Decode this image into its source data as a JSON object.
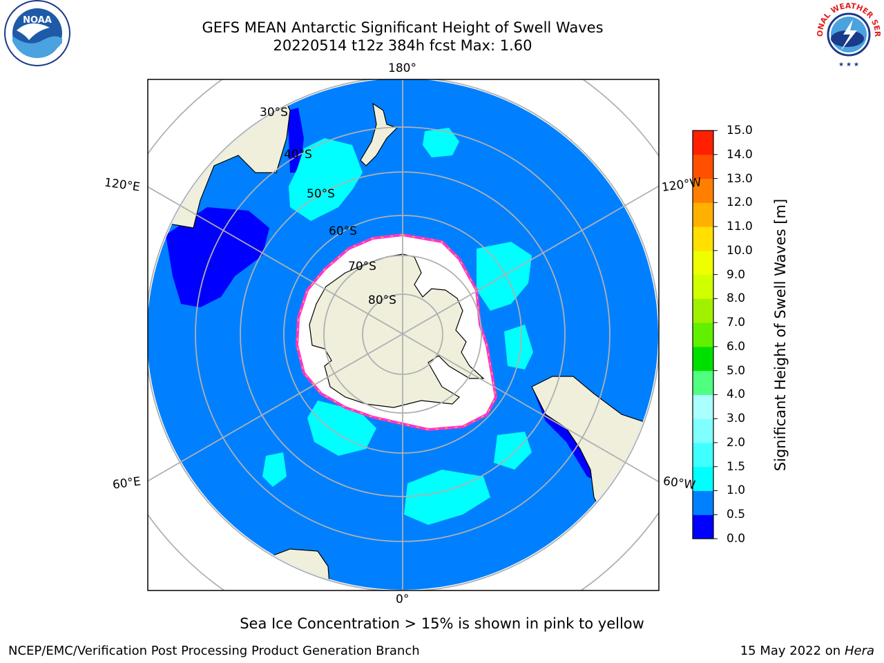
{
  "title": {
    "line1": "GEFS MEAN Antarctic Significant Height of Swell Waves",
    "line2": "20220514 t12z 384h fcst   Max: 1.60"
  },
  "logos": {
    "left": {
      "text": "NOAA",
      "icon": "noaa-logo-icon"
    },
    "right": {
      "text": "NATIONAL WEATHER SERVICE",
      "icon": "nws-logo-icon"
    }
  },
  "map": {
    "projection": "south-polar-stereographic",
    "longitude_labels": {
      "top": "180°",
      "bottom": "0°",
      "upper_left": "120°E",
      "upper_right": "120°W",
      "lower_left": "60°E",
      "lower_right": "60°W"
    },
    "latitude_labels": [
      "30°S",
      "40°S",
      "50°S",
      "60°S",
      "70°S",
      "80°S"
    ],
    "colors": {
      "ocean": "#0080ff",
      "land": "#efefdc",
      "ice": "#ffffff",
      "ice_edge": "#ff33cc",
      "graticule": "#b0b0b0"
    }
  },
  "colorbar": {
    "label": "Significant Height of Swell Waves [m]",
    "ticks": [
      "0.0",
      "0.5",
      "1.0",
      "1.5",
      "2.0",
      "3.0",
      "4.0",
      "5.0",
      "6.0",
      "7.0",
      "8.0",
      "9.0",
      "10.0",
      "11.0",
      "12.0",
      "13.0",
      "14.0",
      "15.0"
    ],
    "colors": [
      "#0000ff",
      "#0080ff",
      "#00ffff",
      "#40ffff",
      "#80ffff",
      "#aaffff",
      "#50ff80",
      "#00e000",
      "#60f000",
      "#a0f000",
      "#d0ff00",
      "#f0ff00",
      "#ffe000",
      "#ffb000",
      "#ff8000",
      "#ff5000",
      "#ff2000",
      "#ff0000"
    ]
  },
  "footer": {
    "ice_note": "Sea Ice Concentration > 15% is shown in pink to yellow",
    "left": "NCEP/EMC/Verification Post Processing Product Generation Branch",
    "right_date": "15 May 2022 on",
    "right_machine": "Hera"
  }
}
